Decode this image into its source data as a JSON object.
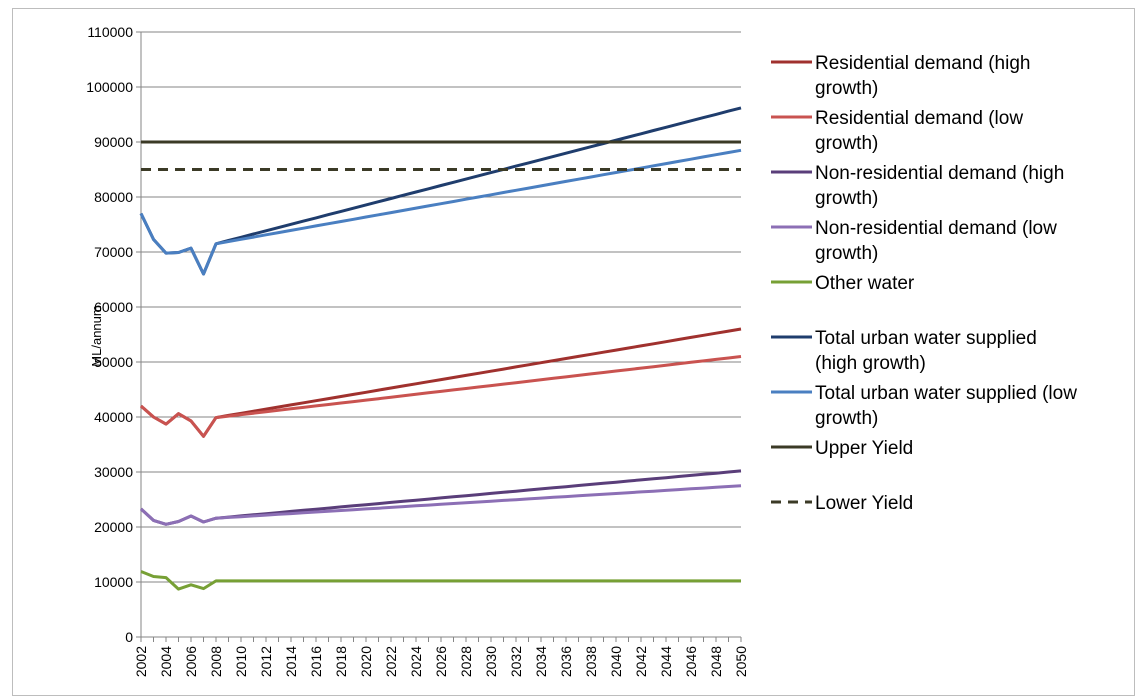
{
  "chart_data": {
    "type": "line",
    "ylabel": "ML/annum",
    "xlabel": "",
    "ylim": [
      0,
      110000
    ],
    "yticks": [
      0,
      10000,
      20000,
      30000,
      40000,
      50000,
      60000,
      70000,
      80000,
      90000,
      100000,
      110000
    ],
    "ytick_labels": [
      "0",
      "10000",
      "20000",
      "30000",
      "40000",
      "50000",
      "60000",
      "70000",
      "80000",
      "90000",
      "100000",
      "110000"
    ],
    "xlim": [
      2002,
      2050
    ],
    "xticks": [
      2002,
      2004,
      2006,
      2008,
      2010,
      2012,
      2014,
      2016,
      2018,
      2020,
      2022,
      2024,
      2026,
      2028,
      2030,
      2032,
      2034,
      2036,
      2038,
      2040,
      2042,
      2044,
      2046,
      2048,
      2050
    ],
    "xtick_labels": [
      "2002",
      "2004",
      "2006",
      "2008",
      "2010",
      "2012",
      "2014",
      "2016",
      "2018",
      "2020",
      "2022",
      "2024",
      "2026",
      "2028",
      "2030",
      "2032",
      "2034",
      "2036",
      "2038",
      "2040",
      "2042",
      "2044",
      "2046",
      "2048",
      "2050"
    ],
    "grid": "horizontal",
    "legend_position": "right",
    "series": [
      {
        "name": "Residential demand (high growth)",
        "color": "#a0312e",
        "dash": "solid",
        "points": [
          [
            2002,
            42000
          ],
          [
            2003,
            40000
          ],
          [
            2004,
            38700
          ],
          [
            2005,
            40600
          ],
          [
            2006,
            39300
          ],
          [
            2007,
            36500
          ],
          [
            2008,
            39900
          ],
          [
            2050,
            56000
          ]
        ],
        "trend": "linear"
      },
      {
        "name": "Residential demand (low growth)",
        "color": "#c95350",
        "dash": "solid",
        "points": [
          [
            2002,
            42000
          ],
          [
            2003,
            40000
          ],
          [
            2004,
            38700
          ],
          [
            2005,
            40600
          ],
          [
            2006,
            39300
          ],
          [
            2007,
            36500
          ],
          [
            2008,
            39900
          ],
          [
            2050,
            51000
          ]
        ],
        "trend": "linear"
      },
      {
        "name": "Non-residential demand (high growth)",
        "color": "#5a3e7a",
        "dash": "solid",
        "points": [
          [
            2002,
            23300
          ],
          [
            2003,
            21200
          ],
          [
            2004,
            20500
          ],
          [
            2005,
            21000
          ],
          [
            2006,
            22000
          ],
          [
            2007,
            20900
          ],
          [
            2008,
            21600
          ],
          [
            2050,
            30200
          ]
        ],
        "trend": "linear"
      },
      {
        "name": "Non-residential demand (low growth)",
        "color": "#8c6fb5",
        "dash": "solid",
        "points": [
          [
            2002,
            23300
          ],
          [
            2003,
            21200
          ],
          [
            2004,
            20500
          ],
          [
            2005,
            21000
          ],
          [
            2006,
            22000
          ],
          [
            2007,
            20900
          ],
          [
            2008,
            21600
          ],
          [
            2050,
            27500
          ]
        ],
        "trend": "linear"
      },
      {
        "name": "Other water",
        "color": "#77a035",
        "dash": "solid",
        "points": [
          [
            2002,
            11900
          ],
          [
            2003,
            11000
          ],
          [
            2004,
            10800
          ],
          [
            2005,
            8700
          ],
          [
            2006,
            9500
          ],
          [
            2007,
            8800
          ],
          [
            2008,
            10200
          ],
          [
            2050,
            10200
          ]
        ],
        "trend": "linear"
      },
      {
        "name": "Total urban water supplied (high growth)",
        "color": "#1f3d6d",
        "dash": "solid",
        "points": [
          [
            2002,
            77000
          ],
          [
            2003,
            72300
          ],
          [
            2004,
            69800
          ],
          [
            2005,
            69900
          ],
          [
            2006,
            70700
          ],
          [
            2007,
            66000
          ],
          [
            2008,
            71500
          ],
          [
            2050,
            96200
          ]
        ],
        "trend": "linear"
      },
      {
        "name": "Total urban water supplied (low growth)",
        "color": "#4a7fc1",
        "dash": "solid",
        "points": [
          [
            2002,
            77000
          ],
          [
            2003,
            72300
          ],
          [
            2004,
            69800
          ],
          [
            2005,
            69900
          ],
          [
            2006,
            70700
          ],
          [
            2007,
            66000
          ],
          [
            2008,
            71500
          ],
          [
            2050,
            88500
          ]
        ],
        "trend": "linear"
      },
      {
        "name": "Upper Yield",
        "color": "#3b3a26",
        "dash": "solid",
        "points": [
          [
            2002,
            90000
          ],
          [
            2050,
            90000
          ]
        ],
        "trend": "linear"
      },
      {
        "name": "Lower Yield",
        "color": "#3b3a26",
        "dash": "dashed",
        "points": [
          [
            2002,
            85000
          ],
          [
            2050,
            85000
          ]
        ],
        "trend": "linear"
      }
    ],
    "legend": [
      {
        "lines": [
          "Residential demand (high",
          "growth)"
        ]
      },
      {
        "lines": [
          "Residential demand (low",
          "growth)"
        ]
      },
      {
        "lines": [
          "Non-residential demand (high",
          "growth)"
        ]
      },
      {
        "lines": [
          "Non-residential demand (low",
          "growth)"
        ]
      },
      {
        "lines": [
          "Other water"
        ]
      },
      {
        "lines": [
          "Total urban water supplied",
          "(high growth)"
        ]
      },
      {
        "lines": [
          "Total urban water supplied (low",
          "growth)"
        ]
      },
      {
        "lines": [
          "Upper Yield"
        ]
      },
      {
        "lines": [
          "Lower Yield"
        ]
      }
    ]
  }
}
